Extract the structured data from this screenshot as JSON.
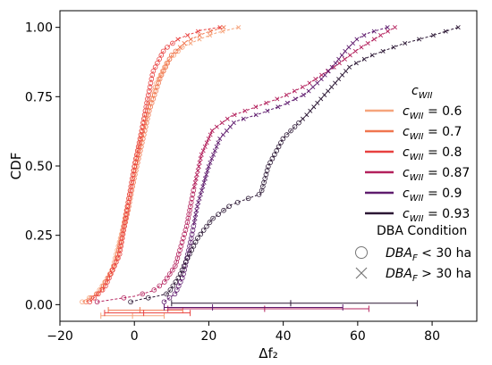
{
  "chart_data": {
    "type": "line",
    "xlabel": "Δf₂",
    "ylabel": "CDF",
    "xlim": [
      -20,
      92
    ],
    "ylim": [
      -0.06,
      1.06
    ],
    "xticks": [
      -20,
      0,
      20,
      40,
      60,
      80
    ],
    "yticks": [
      0.0,
      0.25,
      0.5,
      0.75,
      1.0
    ],
    "xtick_labels": [
      "−20",
      "0",
      "20",
      "40",
      "60",
      "80"
    ],
    "ytick_labels": [
      "0.00",
      "0.25",
      "0.50",
      "0.75",
      "1.00"
    ],
    "grid": false,
    "legend": {
      "title": "c_WII",
      "title_main": "c",
      "title_sub": "WII",
      "placement": "right",
      "condition_title": "DBA Condition",
      "markers": [
        {
          "symbol": "circle",
          "main": "DBA",
          "sub": "F",
          "rest": " < 30 ha"
        },
        {
          "symbol": "x",
          "main": "DBA",
          "sub": "F",
          "rest": " > 30 ha"
        }
      ]
    },
    "series": [
      {
        "name": "c_WII = 0.6",
        "name_main": "c",
        "name_sub": "WII",
        "value_label": " = 0.6",
        "color": "#f6a47c",
        "cdf_knots": [
          [
            -14,
            0.01
          ],
          [
            -10,
            0.04
          ],
          [
            -6,
            0.12
          ],
          [
            -3,
            0.28
          ],
          [
            -1,
            0.42
          ],
          [
            1,
            0.55
          ],
          [
            3,
            0.68
          ],
          [
            6,
            0.8
          ],
          [
            9,
            0.88
          ],
          [
            13,
            0.93
          ],
          [
            18,
            0.96
          ],
          [
            22,
            0.98
          ],
          [
            28,
            1.0
          ]
        ],
        "switch_x": 13,
        "errorbar": {
          "y": -0.04,
          "x": -0.5,
          "xmin": -9,
          "xmax": 8
        }
      },
      {
        "name": "c_WII = 0.7",
        "name_main": "c",
        "name_sub": "WII",
        "value_label": " = 0.7",
        "color": "#f0764f",
        "cdf_knots": [
          [
            -13,
            0.01
          ],
          [
            -9,
            0.05
          ],
          [
            -5,
            0.15
          ],
          [
            -2,
            0.32
          ],
          [
            0,
            0.46
          ],
          [
            2,
            0.58
          ],
          [
            4,
            0.7
          ],
          [
            7,
            0.82
          ],
          [
            10,
            0.9
          ],
          [
            14,
            0.95
          ],
          [
            19,
            0.98
          ],
          [
            24,
            1.0
          ]
        ],
        "switch_x": 12,
        "errorbar": {
          "y": -0.02,
          "x": 1.5,
          "xmin": -7,
          "xmax": 13
        }
      },
      {
        "name": "c_WII = 0.8",
        "name_main": "c",
        "name_sub": "WII",
        "value_label": " = 0.8",
        "color": "#e8403f",
        "cdf_knots": [
          [
            -12,
            0.01
          ],
          [
            -8,
            0.06
          ],
          [
            -4,
            0.18
          ],
          [
            -2,
            0.34
          ],
          [
            0,
            0.5
          ],
          [
            2,
            0.63
          ],
          [
            3.5,
            0.74
          ],
          [
            5,
            0.84
          ],
          [
            8,
            0.92
          ],
          [
            12,
            0.96
          ],
          [
            18,
            0.99
          ],
          [
            23,
            1.0
          ]
        ],
        "switch_x": 11,
        "errorbar": {
          "y": -0.03,
          "x": 2.5,
          "xmin": -8,
          "xmax": 15
        }
      },
      {
        "name": "c_WII = 0.87",
        "name_main": "c",
        "name_sub": "WII",
        "value_label": " = 0.87",
        "color": "#b3205c",
        "cdf_knots": [
          [
            -10,
            0.01
          ],
          [
            -5,
            0.02
          ],
          [
            0,
            0.03
          ],
          [
            5,
            0.05
          ],
          [
            8,
            0.08
          ],
          [
            11,
            0.14
          ],
          [
            14,
            0.28
          ],
          [
            16,
            0.42
          ],
          [
            18,
            0.54
          ],
          [
            21,
            0.63
          ],
          [
            26,
            0.68
          ],
          [
            32,
            0.71
          ],
          [
            40,
            0.75
          ],
          [
            46,
            0.79
          ],
          [
            54,
            0.86
          ],
          [
            60,
            0.92
          ],
          [
            66,
            0.97
          ],
          [
            70,
            1.0
          ]
        ],
        "switch_x": 16,
        "errorbar": {
          "y": -0.015,
          "x": 35,
          "xmin": 9,
          "xmax": 63
        }
      },
      {
        "name": "c_WII = 0.9",
        "name_main": "c",
        "name_sub": "WII",
        "value_label": " = 0.9",
        "color": "#5f1c6e",
        "cdf_knots": [
          [
            8,
            0.01
          ],
          [
            11,
            0.04
          ],
          [
            13,
            0.1
          ],
          [
            15,
            0.22
          ],
          [
            17,
            0.36
          ],
          [
            20,
            0.5
          ],
          [
            23,
            0.6
          ],
          [
            27,
            0.66
          ],
          [
            34,
            0.69
          ],
          [
            40,
            0.72
          ],
          [
            46,
            0.76
          ],
          [
            50,
            0.81
          ],
          [
            54,
            0.87
          ],
          [
            57,
            0.92
          ],
          [
            60,
            0.96
          ],
          [
            63,
            0.98
          ],
          [
            68,
            1.0
          ]
        ],
        "switch_x": 16,
        "errorbar": {
          "y": -0.01,
          "x": 21,
          "xmin": 8,
          "xmax": 56
        }
      },
      {
        "name": "c_WII = 0.93",
        "name_main": "c",
        "name_sub": "WII",
        "value_label": " = 0.93",
        "color": "#2b1734",
        "cdf_knots": [
          [
            -1,
            0.01
          ],
          [
            2,
            0.02
          ],
          [
            6,
            0.03
          ],
          [
            9,
            0.04
          ],
          [
            10,
            0.06
          ],
          [
            12,
            0.1
          ],
          [
            14,
            0.16
          ],
          [
            17,
            0.24
          ],
          [
            21,
            0.31
          ],
          [
            26,
            0.36
          ],
          [
            30,
            0.38
          ],
          [
            34,
            0.4
          ],
          [
            36,
            0.5
          ],
          [
            40,
            0.6
          ],
          [
            46,
            0.68
          ],
          [
            50,
            0.74
          ],
          [
            54,
            0.8
          ],
          [
            58,
            0.86
          ],
          [
            64,
            0.9
          ],
          [
            72,
            0.94
          ],
          [
            80,
            0.97
          ],
          [
            87,
            1.0
          ]
        ],
        "switch_x": 45,
        "errorbar": {
          "y": 0.005,
          "x": 42,
          "xmin": 10,
          "xmax": 76
        }
      }
    ]
  }
}
